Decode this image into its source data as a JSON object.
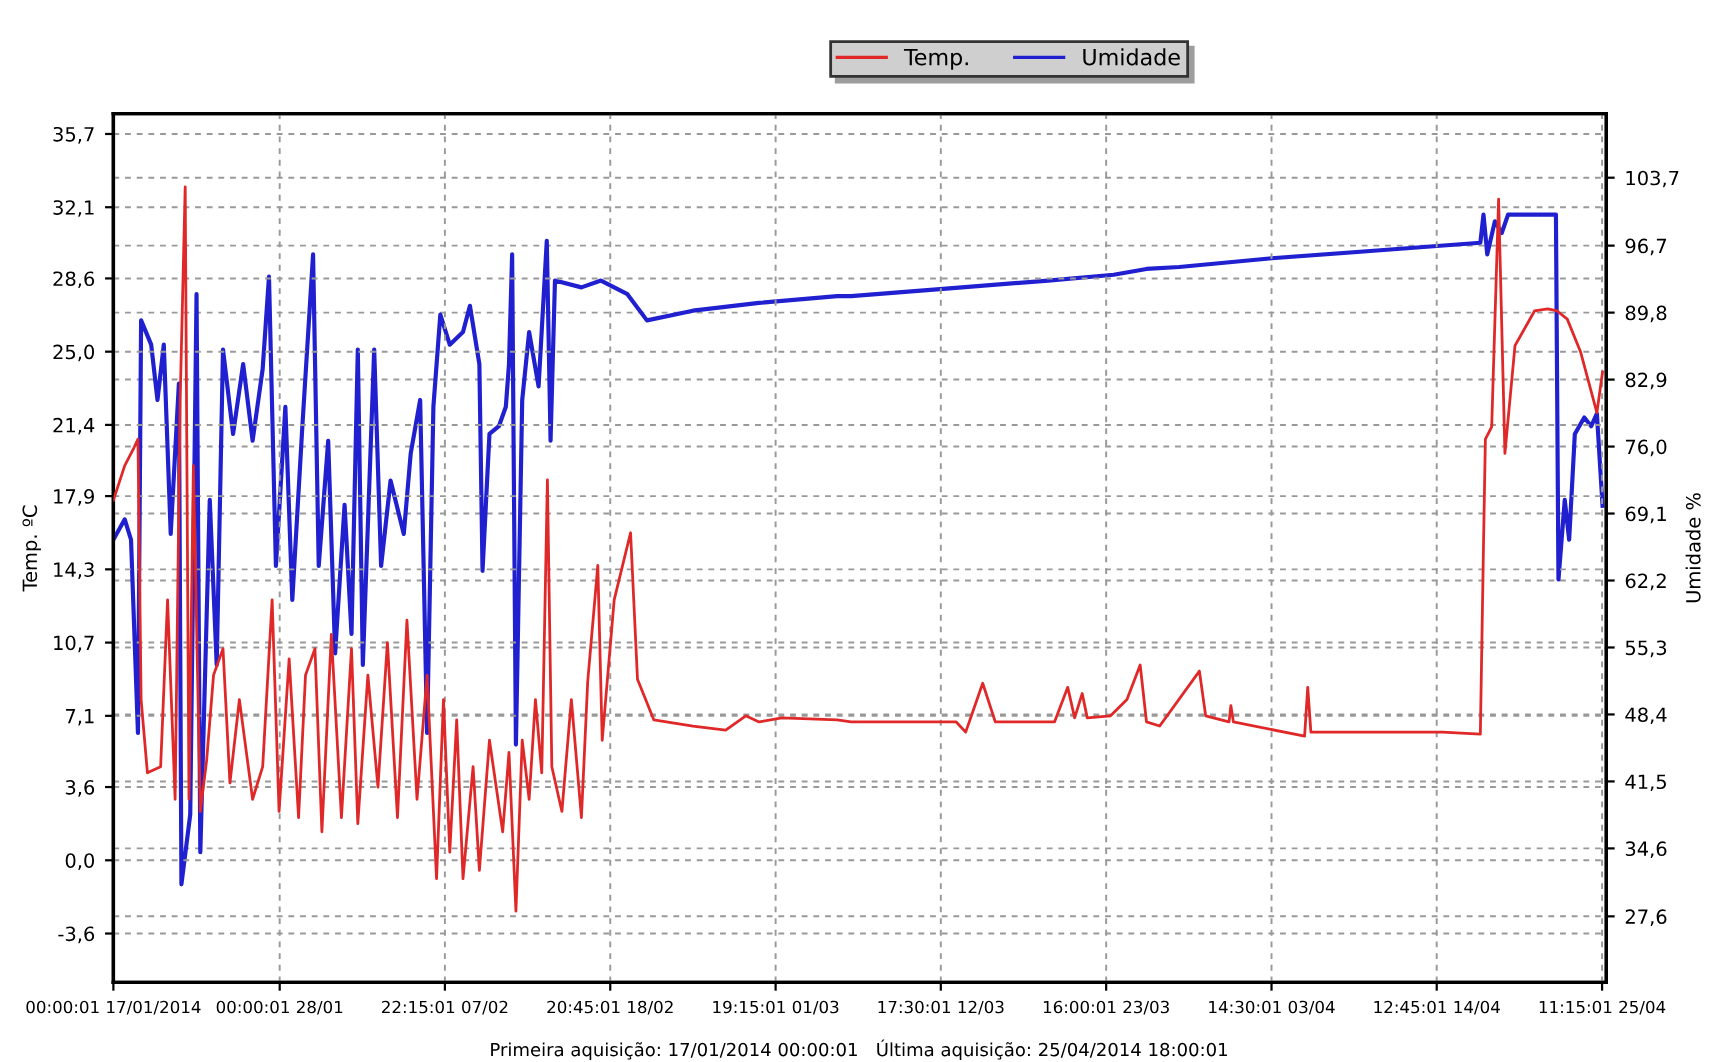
{
  "chart_data": {
    "type": "line",
    "xlabel": null,
    "ylabel": "Temp. ºC",
    "y2label": "Umidade %",
    "annotations": [
      "Primeira aquisição: 17/01/2014 00:00:01   Última aquisição: 25/04/2014 18:00:01"
    ],
    "xlim": [
      "2014-01-17T00:00",
      "2014-04-25T18:00"
    ],
    "xticks": [
      {
        "value": "2014-01-17T00:00",
        "label": "00:00:01 17/01/2014"
      },
      {
        "value": "2014-01-28T00:00",
        "label": "00:00:01 28/01"
      },
      {
        "value": "2014-02-07T22:15",
        "label": "22:15:01 07/02"
      },
      {
        "value": "2014-02-18T20:45",
        "label": "20:45:01 18/02"
      },
      {
        "value": "2014-03-01T19:15",
        "label": "19:15:01 01/03"
      },
      {
        "value": "2014-03-12T17:30",
        "label": "17:30:01 12/03"
      },
      {
        "value": "2014-03-23T16:00",
        "label": "16:00:01 23/03"
      },
      {
        "value": "2014-04-03T14:30",
        "label": "14:30:01 03/04"
      },
      {
        "value": "2014-04-14T12:45",
        "label": "12:45:01 14/04"
      },
      {
        "value": "2014-04-25T11:15",
        "label": "11:15:01 25/04"
      }
    ],
    "ylim": [
      -6.0,
      36.7
    ],
    "yticks": [
      {
        "value": -3.6,
        "label": "-3,6"
      },
      {
        "value": 0.0,
        "label": "0,0"
      },
      {
        "value": 3.6,
        "label": "3,6"
      },
      {
        "value": 7.1,
        "label": "7,1"
      },
      {
        "value": 10.7,
        "label": "10,7"
      },
      {
        "value": 14.3,
        "label": "14,3"
      },
      {
        "value": 17.9,
        "label": "17,9"
      },
      {
        "value": 21.4,
        "label": "21,4"
      },
      {
        "value": 25.0,
        "label": "25,0"
      },
      {
        "value": 28.6,
        "label": "28,6"
      },
      {
        "value": 32.1,
        "label": "32,1"
      },
      {
        "value": 35.7,
        "label": "35,7"
      }
    ],
    "y2lim": [
      20.8,
      110.3
    ],
    "y2ticks": [
      {
        "value": 27.6,
        "label": "27,6"
      },
      {
        "value": 34.6,
        "label": "34,6"
      },
      {
        "value": 41.5,
        "label": "41,5"
      },
      {
        "value": 48.4,
        "label": "48,4"
      },
      {
        "value": 55.3,
        "label": "55,3"
      },
      {
        "value": 62.2,
        "label": "62,2"
      },
      {
        "value": 69.1,
        "label": "69,1"
      },
      {
        "value": 76.0,
        "label": "76,0"
      },
      {
        "value": 82.9,
        "label": "82,9"
      },
      {
        "value": 89.8,
        "label": "89,8"
      },
      {
        "value": 96.7,
        "label": "96,7"
      },
      {
        "value": 103.7,
        "label": "103,7"
      }
    ],
    "grid": true,
    "legend": "top",
    "line_style": "solid",
    "marker": "none",
    "series": [
      {
        "name": "Temp.",
        "color": "#e02828",
        "x": [
          "2014-01-17T00:00",
          "2014-01-17T18:00",
          "2014-01-18T09:00",
          "2014-01-18T15:00",
          "2014-01-18T20:00",
          "2014-01-19T06:00",
          "2014-01-20T03:00",
          "2014-01-20T14:00",
          "2014-01-21T02:00",
          "2014-01-21T10:00",
          "2014-01-21T18:00",
          "2014-01-22T00:00",
          "2014-01-22T07:00",
          "2014-01-22T18:00",
          "2014-01-23T04:00",
          "2014-01-23T15:00",
          "2014-01-24T06:00",
          "2014-01-24T17:00",
          "2014-01-25T08:00",
          "2014-01-26T05:00",
          "2014-01-26T21:00",
          "2014-01-27T12:00",
          "2014-01-27T23:00",
          "2014-01-28T15:00",
          "2014-01-29T06:00",
          "2014-01-29T17:00",
          "2014-01-30T08:00",
          "2014-01-30T19:00",
          "2014-01-31T10:00",
          "2014-02-01T02:00",
          "2014-02-01T18:00",
          "2014-02-02T04:00",
          "2014-02-02T20:00",
          "2014-02-03T12:00",
          "2014-02-04T03:00",
          "2014-02-04T19:00",
          "2014-02-05T10:00",
          "2014-02-06T02:00",
          "2014-02-06T18:00",
          "2014-02-07T09:00",
          "2014-02-07T20:00",
          "2014-02-08T06:00",
          "2014-02-08T17:00",
          "2014-02-09T03:00",
          "2014-02-09T19:00",
          "2014-02-10T05:00",
          "2014-02-10T21:00",
          "2014-02-11T18:00",
          "2014-02-12T04:00",
          "2014-02-12T15:00",
          "2014-02-13T01:00",
          "2014-02-13T12:00",
          "2014-02-13T22:00",
          "2014-02-14T08:00",
          "2014-02-14T17:00",
          "2014-02-15T00:00",
          "2014-02-15T16:00",
          "2014-02-16T07:00",
          "2014-02-16T23:00",
          "2014-02-17T09:00",
          "2014-02-18T01:00",
          "2014-02-18T08:00",
          "2014-02-19T03:00",
          "2014-02-20T05:00",
          "2014-02-20T16:00",
          "2014-02-21T18:00",
          "2014-02-24T08:00",
          "2014-02-26T12:00",
          "2014-02-27T20:00",
          "2014-02-28T17:00",
          "2014-03-02T05:00",
          "2014-03-05T21:00",
          "2014-03-06T19:00",
          "2014-03-13T18:00",
          "2014-03-14T09:00",
          "2014-03-15T12:00",
          "2014-03-16T08:00",
          "2014-03-20T06:00",
          "2014-03-21T03:00",
          "2014-03-21T14:00",
          "2014-03-22T02:00",
          "2014-03-22T10:00",
          "2014-03-23T23:00",
          "2014-03-25T01:00",
          "2014-03-25T22:00",
          "2014-03-26T08:00",
          "2014-03-27T05:00",
          "2014-03-29T20:00",
          "2014-03-30T06:00",
          "2014-03-31T19:00",
          "2014-03-31T22:00",
          "2014-04-01T02:00",
          "2014-04-05T19:00",
          "2014-04-06T00:00",
          "2014-04-06T05:00",
          "2014-04-10T14:00",
          "2014-04-14T22:00",
          "2014-04-17T10:00",
          "2014-04-17T15:00",
          "2014-04-17T18:00",
          "2014-04-18T04:00",
          "2014-04-18T15:00",
          "2014-04-19T01:00",
          "2014-04-19T17:00",
          "2014-04-21T00:00",
          "2014-04-21T21:00",
          "2014-04-22T12:00",
          "2014-04-23T04:00",
          "2014-04-24T01:00",
          "2014-04-25T03:00",
          "2014-04-25T12:00"
        ],
        "values": [
          17.7,
          19.4,
          20.3,
          20.7,
          7.9,
          4.3,
          4.6,
          12.8,
          3.0,
          22.6,
          33.1,
          3.0,
          19.4,
          2.4,
          4.9,
          9.1,
          10.4,
          3.8,
          7.9,
          3.0,
          4.6,
          12.8,
          2.4,
          9.9,
          2.1,
          9.1,
          10.4,
          1.4,
          11.1,
          2.1,
          10.4,
          1.8,
          9.1,
          3.6,
          10.7,
          2.1,
          11.8,
          3.0,
          9.1,
          -0.9,
          7.9,
          0.4,
          6.9,
          -0.9,
          4.6,
          -0.5,
          5.9,
          1.4,
          5.3,
          -2.5,
          5.9,
          3.0,
          7.9,
          4.3,
          18.7,
          4.6,
          2.4,
          7.9,
          2.1,
          8.8,
          14.5,
          5.9,
          12.8,
          16.1,
          8.9,
          6.9,
          6.6,
          6.4,
          7.1,
          6.8,
          7.0,
          6.9,
          6.8,
          6.8,
          6.3,
          8.7,
          6.8,
          6.8,
          8.5,
          7.0,
          8.2,
          7.0,
          7.1,
          7.9,
          9.6,
          6.8,
          6.6,
          9.3,
          7.1,
          6.8,
          7.6,
          6.8,
          6.1,
          8.5,
          6.3,
          6.3,
          6.3,
          6.2,
          15.5,
          20.7,
          21.3,
          32.5,
          20.0,
          25.3,
          27.0,
          27.1,
          27.0,
          26.6,
          25.0,
          22.0,
          24.0
        ]
      },
      {
        "name": "Umidade",
        "color": "#2020d0",
        "axis": "y2",
        "x": [
          "2014-01-17T00:00",
          "2014-01-17T18:00",
          "2014-01-18T04:00",
          "2014-01-18T15:00",
          "2014-01-18T20:00",
          "2014-01-19T12:00",
          "2014-01-19T22:00",
          "2014-01-20T08:00",
          "2014-01-20T19:00",
          "2014-01-21T08:00",
          "2014-01-21T12:00",
          "2014-01-22T02:00",
          "2014-01-22T12:00",
          "2014-01-22T18:00",
          "2014-01-23T09:00",
          "2014-01-23T20:00",
          "2014-01-24T06:00",
          "2014-01-24T22:00",
          "2014-01-25T14:00",
          "2014-01-26T05:00",
          "2014-01-26T21:00",
          "2014-01-27T07:00",
          "2014-01-27T18:00",
          "2014-01-28T09:00",
          "2014-01-28T20:00",
          "2014-01-29T12:00",
          "2014-01-30T05:00",
          "2014-01-30T14:00",
          "2014-01-31T05:00",
          "2014-01-31T16:00",
          "2014-02-01T07:00",
          "2014-02-01T18:00",
          "2014-02-02T04:00",
          "2014-02-02T12:00",
          "2014-02-03T06:00",
          "2014-02-03T17:00",
          "2014-02-04T08:00",
          "2014-02-05T05:00",
          "2014-02-05T16:00",
          "2014-02-06T07:00",
          "2014-02-06T18:00",
          "2014-02-07T04:00",
          "2014-02-07T15:00",
          "2014-02-08T06:00",
          "2014-02-09T03:00",
          "2014-02-09T14:00",
          "2014-02-10T05:00",
          "2014-02-10T10:00",
          "2014-02-10T21:00",
          "2014-02-11T12:00",
          "2014-02-11T23:00",
          "2014-02-12T04:00",
          "2014-02-12T09:00",
          "2014-02-12T15:00",
          "2014-02-13T01:00",
          "2014-02-13T12:00",
          "2014-02-14T03:00",
          "2014-02-14T16:00",
          "2014-02-14T22:00",
          "2014-02-15T05:00",
          "2014-02-16T23:00",
          "2014-02-18T06:00",
          "2014-02-20T00:00",
          "2014-02-21T07:00",
          "2014-02-24T08:00",
          "2014-02-28T17:00",
          "2014-03-05T21:00",
          "2014-03-06T19:00",
          "2014-03-13T07:00",
          "2014-03-19T20:00",
          "2014-03-24T04:00",
          "2014-03-26T08:00",
          "2014-03-28T12:00",
          "2014-04-03T15:00",
          "2014-04-10T14:00",
          "2014-04-17T10:00",
          "2014-04-17T15:00",
          "2014-04-17T21:00",
          "2014-04-18T09:00",
          "2014-04-18T20:00",
          "2014-04-19T06:00",
          "2014-04-22T10:00",
          "2014-04-22T14:00",
          "2014-04-23T00:00",
          "2014-04-23T07:00",
          "2014-04-23T16:00",
          "2014-04-24T07:00",
          "2014-04-24T18:00",
          "2014-04-25T03:00",
          "2014-04-25T12:00"
        ],
        "values": [
          66.4,
          68.5,
          66.4,
          46.5,
          89.0,
          86.5,
          80.8,
          86.5,
          67.0,
          82.5,
          30.9,
          38.1,
          91.7,
          34.2,
          70.5,
          53.5,
          86.0,
          77.3,
          84.5,
          76.6,
          84.0,
          93.5,
          63.7,
          80.1,
          60.2,
          78.1,
          95.8,
          63.7,
          76.6,
          54.7,
          70.0,
          56.7,
          86.0,
          53.5,
          86.0,
          63.7,
          72.5,
          67.0,
          75.3,
          80.8,
          46.5,
          80.1,
          89.6,
          86.5,
          87.8,
          90.5,
          84.5,
          63.2,
          77.3,
          78.1,
          80.1,
          84.5,
          95.8,
          45.3,
          80.8,
          87.8,
          82.2,
          97.2,
          76.6,
          93.1,
          92.4,
          93.1,
          91.7,
          89.0,
          90.0,
          90.8,
          91.5,
          91.5,
          92.3,
          93.1,
          93.7,
          94.3,
          94.5,
          95.4,
          96.2,
          97.0,
          99.9,
          95.8,
          99.2,
          98.0,
          99.9,
          99.9,
          62.3,
          70.5,
          66.4,
          77.3,
          79.0,
          78.1,
          79.4,
          69.9
        ]
      }
    ]
  }
}
